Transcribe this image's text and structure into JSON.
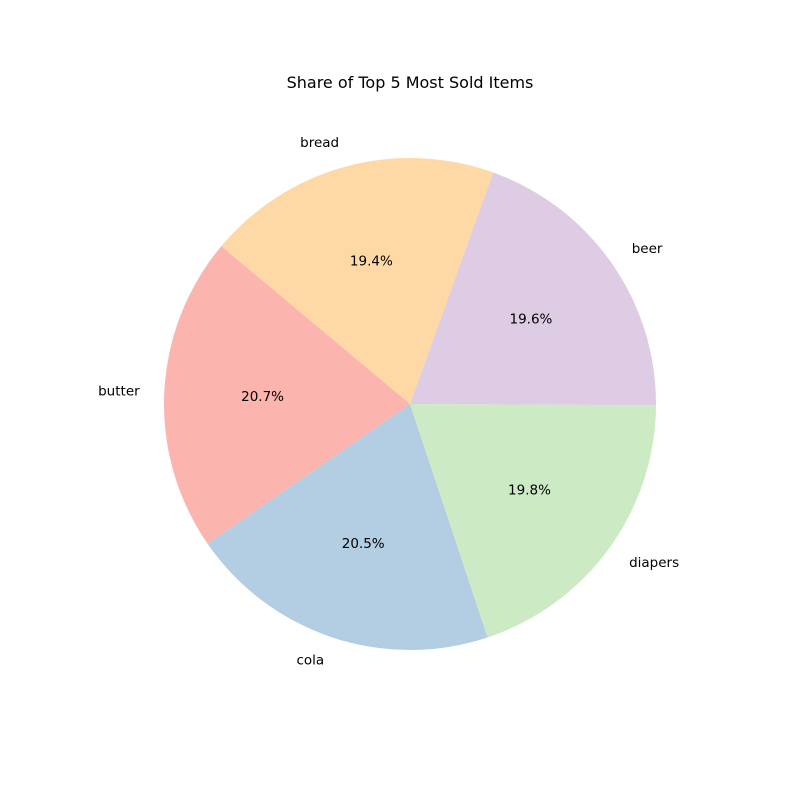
{
  "chart_data": {
    "type": "pie",
    "title": "Share of Top 5 Most Sold Items",
    "slices": [
      {
        "label": "beer",
        "percent": 19.6,
        "percent_label": "19.6%",
        "color": "#decbe4"
      },
      {
        "label": "bread",
        "percent": 19.4,
        "percent_label": "19.4%",
        "color": "#fed9a6"
      },
      {
        "label": "butter",
        "percent": 20.7,
        "percent_label": "20.7%",
        "color": "#fbb4ae"
      },
      {
        "label": "cola",
        "percent": 20.5,
        "percent_label": "20.5%",
        "color": "#b3cde3"
      },
      {
        "label": "diapers",
        "percent": 19.8,
        "percent_label": "19.8%",
        "color": "#ccebc5"
      }
    ]
  }
}
